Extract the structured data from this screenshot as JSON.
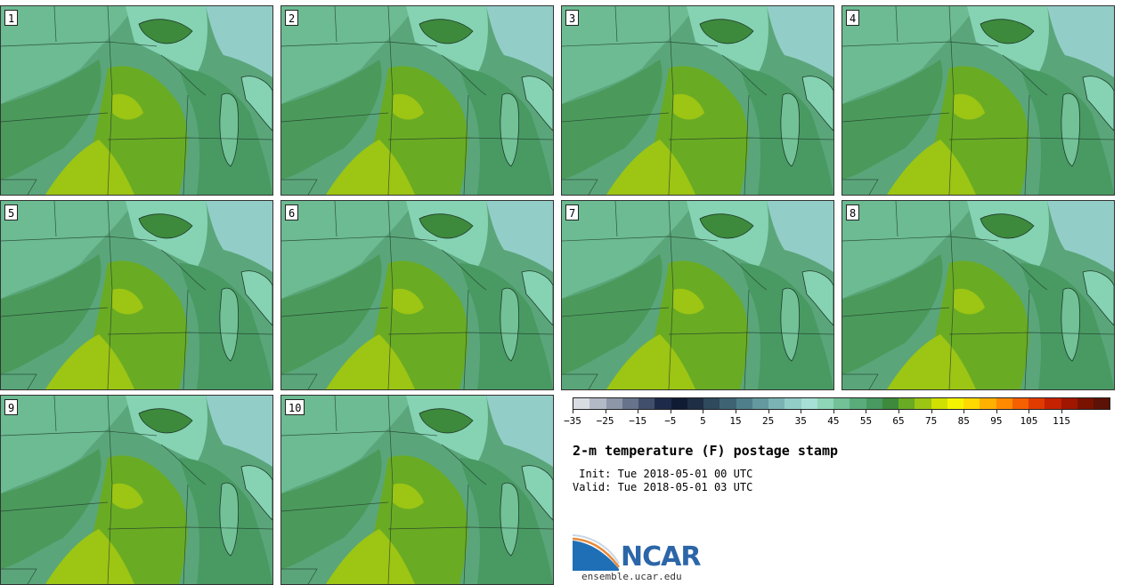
{
  "panels": [
    {
      "label": "1"
    },
    {
      "label": "2"
    },
    {
      "label": "3"
    },
    {
      "label": "4"
    },
    {
      "label": "5"
    },
    {
      "label": "6"
    },
    {
      "label": "7"
    },
    {
      "label": "8"
    },
    {
      "label": "9"
    },
    {
      "label": "10"
    }
  ],
  "colorbar": {
    "colors": [
      "#d9dde3",
      "#b3bac5",
      "#8d97a8",
      "#67738a",
      "#414f6c",
      "#1e2a4a",
      "#0f1a33",
      "#1e2e44",
      "#2e4a5c",
      "#3e6474",
      "#4f7f8a",
      "#64999f",
      "#7bb3b4",
      "#93cdc8",
      "#a6e0d6",
      "#8fd5b8",
      "#72c197",
      "#5aad7b",
      "#489a62",
      "#3d8a3c",
      "#6aab24",
      "#9cc514",
      "#d0e000",
      "#f4f400",
      "#ffd900",
      "#ffb000",
      "#ff8a00",
      "#f56000",
      "#e03b00",
      "#c42200",
      "#a01600",
      "#7a1200",
      "#5c1206"
    ],
    "tick_labels": [
      "-35",
      "-25",
      "-15",
      "-5",
      "5",
      "15",
      "25",
      "35",
      "45",
      "55",
      "65",
      "75",
      "85",
      "95",
      "105",
      "115"
    ]
  },
  "title": "2-m temperature (F) postage stamp",
  "init": " Init: Tue 2018-05-01 00 UTC",
  "valid": "Valid: Tue 2018-05-01 03 UTC",
  "logo_text": "NCAR",
  "website": "ensemble.ucar.edu"
}
